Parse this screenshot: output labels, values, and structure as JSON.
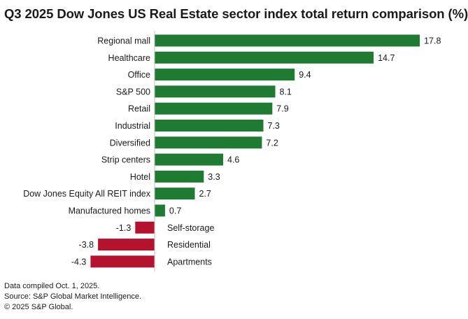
{
  "chart_data": {
    "type": "bar",
    "orientation": "horizontal",
    "title": "Q3 2025 Dow Jones US Real Estate sector index total return comparison (%)",
    "xlabel": "",
    "ylabel": "",
    "categories": [
      "Regional mall",
      "Healthcare",
      "Office",
      "S&P 500",
      "Retail",
      "Industrial",
      "Diversified",
      "Strip centers",
      "Hotel",
      "Dow Jones Equity All REIT index",
      "Manufactured homes",
      "Self-storage",
      "Residential",
      "Apartments"
    ],
    "values": [
      17.8,
      14.7,
      9.4,
      8.1,
      7.9,
      7.3,
      7.2,
      4.6,
      3.3,
      2.7,
      0.7,
      -1.3,
      -3.8,
      -4.3
    ],
    "value_labels": [
      "17.8",
      "14.7",
      "9.4",
      "8.1",
      "7.9",
      "7.3",
      "7.2",
      "4.6",
      "3.3",
      "2.7",
      "0.7",
      "-1.3",
      "-3.8",
      "-4.3"
    ],
    "positive_color": "#1f7a32",
    "negative_color": "#b5122e",
    "axis_color": "#bfbfbf",
    "xlim": [
      -4.3,
      17.8
    ],
    "grid": false,
    "legend": "none"
  },
  "footer": {
    "line1": "Data compiled Oct. 1, 2025.",
    "line2": "Source: S&P Global Market Intelligence.",
    "line3": "© 2025 S&P Global."
  }
}
